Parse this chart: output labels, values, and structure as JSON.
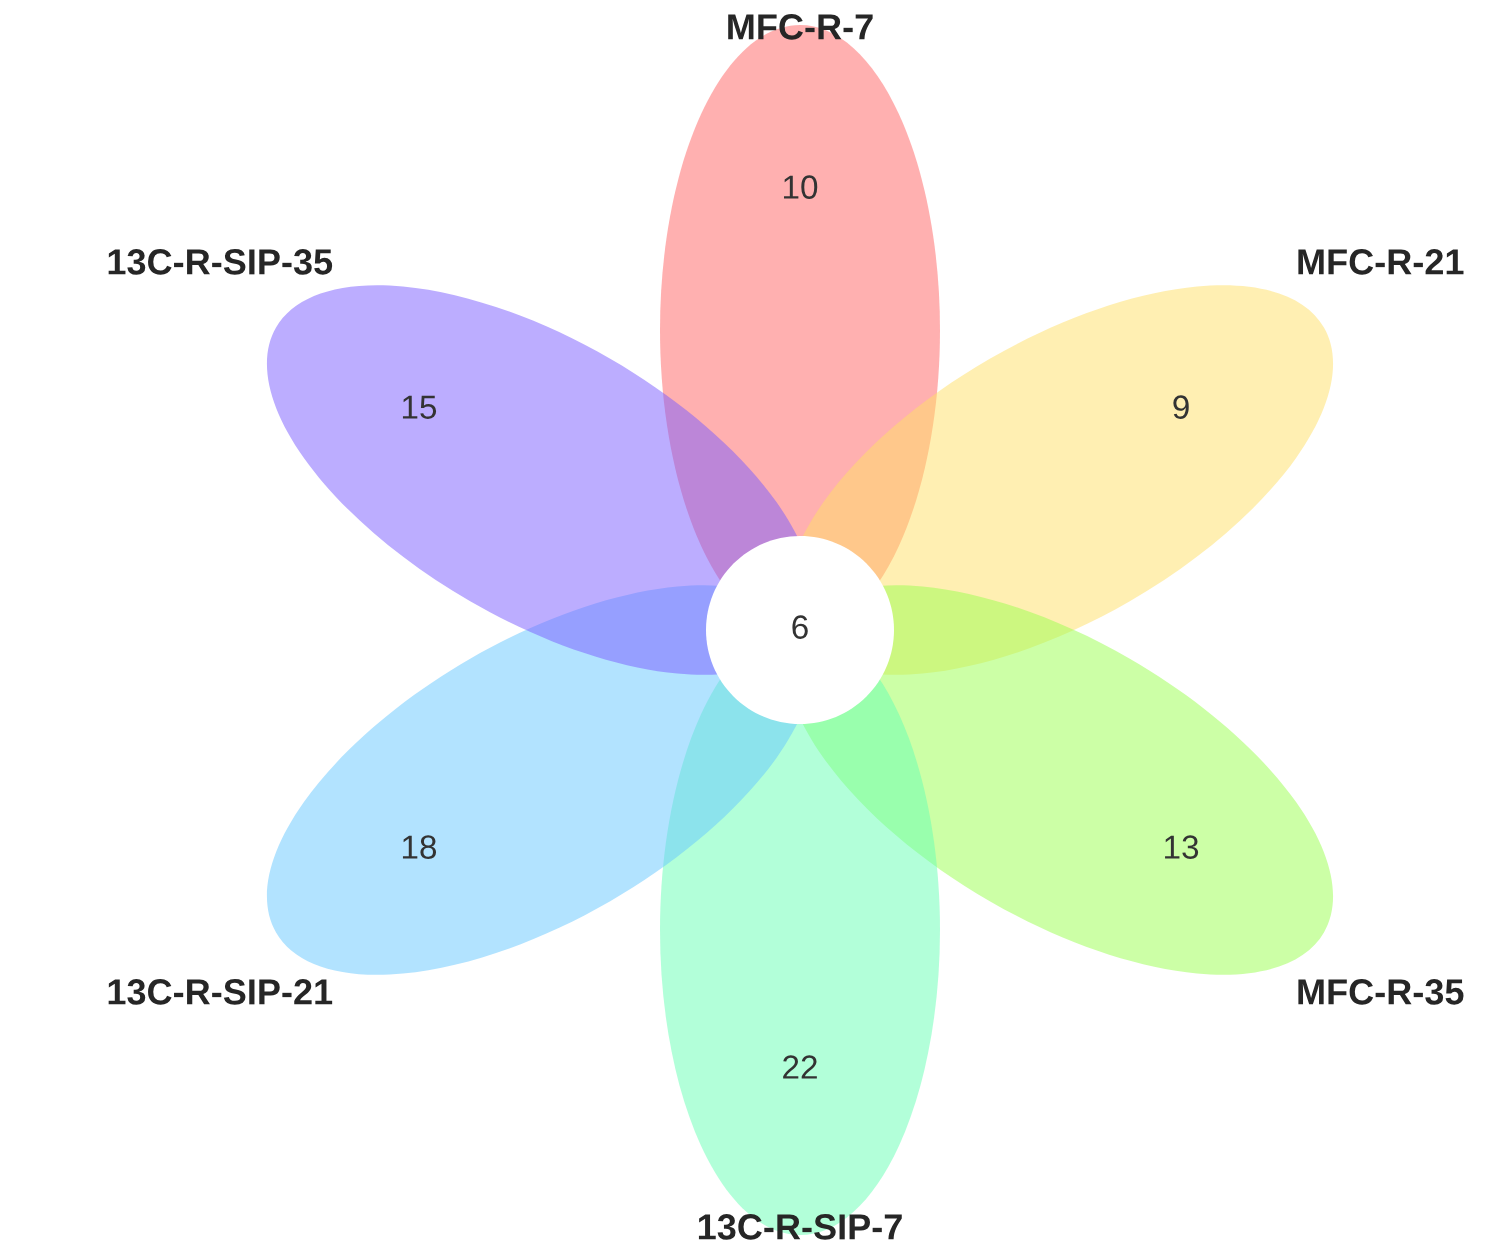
{
  "chart_data": {
    "type": "other",
    "categories": [
      "MFC-R-7",
      "MFC-R-21",
      "MFC-R-35",
      "13C-R-SIP-7",
      "13C-R-SIP-21",
      "13C-R-SIP-35"
    ],
    "values": [
      10,
      9,
      13,
      22,
      18,
      15
    ],
    "colors": [
      "#ff6161",
      "#ffe066",
      "#99ff4d",
      "#66ffb3",
      "#66c8ff",
      "#7a5cff"
    ],
    "data_labels": true,
    "annotations": [
      "6"
    ]
  }
}
